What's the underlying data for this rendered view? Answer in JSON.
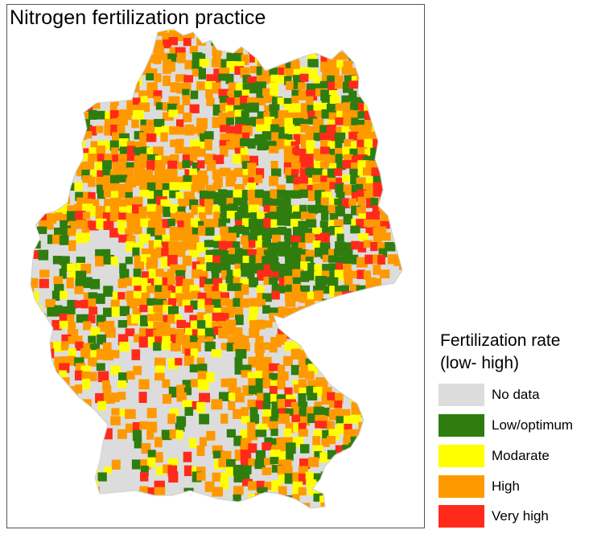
{
  "title": "Nitrogen fertilization practice",
  "legend": {
    "title_line1": "Fertilization rate",
    "title_line2": "(low- high)",
    "items": [
      {
        "label": "No data",
        "color": "#dcdcdc"
      },
      {
        "label": "Low/optimum",
        "color": "#2e7d0e"
      },
      {
        "label": "Modarate",
        "color": "#ffff00"
      },
      {
        "label": "High",
        "color": "#ff9900"
      },
      {
        "label": "Very high",
        "color": "#ff2a1a"
      }
    ]
  },
  "colors": {
    "no_data": "#dcdcdc",
    "low": "#2e7d0e",
    "moderate": "#ffff00",
    "high": "#ff9900",
    "very_high": "#ff2a1a"
  }
}
